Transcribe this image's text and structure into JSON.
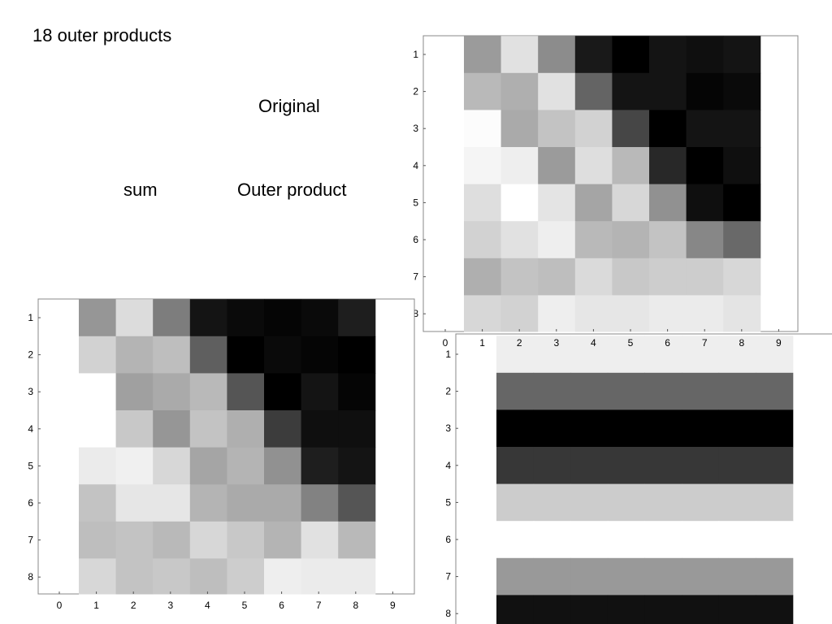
{
  "slide": {
    "title": "18 outer products",
    "labels": {
      "original": "Original",
      "sum": "sum",
      "outer_product": "Outer product"
    }
  },
  "chart_data": [
    {
      "type": "heatmap",
      "id": "original",
      "colormap": "gray",
      "x_ticks": [
        "0",
        "1",
        "2",
        "3",
        "4",
        "5",
        "6",
        "7",
        "8",
        "9"
      ],
      "y_ticks": [
        "1",
        "2",
        "3",
        "4",
        "5",
        "6",
        "7",
        "8"
      ],
      "xlim": [
        0,
        9
      ],
      "ylim": [
        1,
        8
      ],
      "values_gray_0_255": [
        [
          155,
          225,
          140,
          25,
          0,
          20,
          15,
          20
        ],
        [
          185,
          175,
          225,
          100,
          20,
          20,
          5,
          10
        ],
        [
          252,
          170,
          195,
          210,
          70,
          0,
          20,
          20
        ],
        [
          245,
          238,
          155,
          222,
          185,
          40,
          0,
          15
        ],
        [
          222,
          255,
          228,
          165,
          215,
          145,
          15,
          0
        ],
        [
          210,
          225,
          238,
          185,
          180,
          195,
          135,
          105
        ],
        [
          175,
          195,
          190,
          218,
          200,
          205,
          205,
          215
        ],
        [
          215,
          210,
          238,
          230,
          230,
          235,
          235,
          228
        ]
      ]
    },
    {
      "type": "heatmap",
      "id": "sum",
      "colormap": "gray",
      "x_ticks": [
        "0",
        "1",
        "2",
        "3",
        "4",
        "5",
        "6",
        "7",
        "8",
        "9"
      ],
      "y_ticks": [
        "1",
        "2",
        "3",
        "4",
        "5",
        "6",
        "7",
        "8"
      ],
      "xlim": [
        0,
        9
      ],
      "ylim": [
        1,
        8
      ],
      "values_gray_0_255": [
        [
          150,
          220,
          125,
          20,
          10,
          5,
          10,
          30
        ],
        [
          210,
          180,
          190,
          95,
          0,
          10,
          5,
          0
        ],
        [
          255,
          160,
          170,
          185,
          85,
          0,
          20,
          5
        ],
        [
          255,
          200,
          150,
          195,
          175,
          60,
          15,
          15
        ],
        [
          235,
          240,
          215,
          165,
          180,
          145,
          30,
          20
        ],
        [
          195,
          230,
          230,
          180,
          170,
          170,
          130,
          85
        ],
        [
          190,
          195,
          185,
          215,
          200,
          180,
          225,
          185
        ],
        [
          215,
          195,
          200,
          190,
          205,
          238,
          235,
          235
        ]
      ]
    },
    {
      "type": "heatmap",
      "id": "outer_product",
      "colormap": "gray",
      "y_ticks": [
        "1",
        "2",
        "3",
        "4",
        "5",
        "6",
        "7",
        "8"
      ],
      "ylim": [
        1,
        8
      ],
      "row_values_gray_0_255": [
        238,
        102,
        0,
        55,
        204,
        255,
        153,
        17
      ]
    }
  ]
}
